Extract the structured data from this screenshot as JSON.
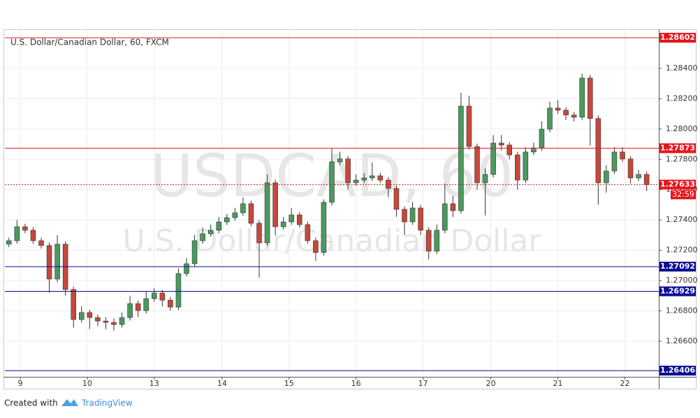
{
  "chart_data": {
    "type": "candlestick",
    "title": "U.S. Dollar/Canadian Dollar, 60, FXCM",
    "watermark": "USDCAD, 60",
    "watermark_subtitle": "U.S. Dollar/Canadian Dollar",
    "footer_prefix": "Created with",
    "footer_brand": "TradingView",
    "up_color": "#4a9a5e",
    "down_color": "#c8473b",
    "x": [
      1,
      2,
      3,
      4,
      5,
      6,
      7,
      8,
      9,
      10,
      11,
      12,
      13,
      14,
      15,
      16,
      17,
      18,
      19,
      20,
      21,
      22,
      23,
      24,
      25,
      26,
      27,
      28,
      29,
      30,
      31,
      32,
      33,
      34,
      35,
      36,
      37,
      38,
      39,
      40,
      41,
      42,
      43,
      44,
      45,
      46,
      47,
      48,
      49,
      50,
      51,
      52,
      53,
      54,
      55,
      56,
      57,
      58,
      59,
      60,
      61,
      62,
      63,
      64,
      65,
      66,
      67,
      68,
      69,
      70,
      71,
      72,
      73,
      74,
      75,
      76,
      77,
      78,
      79,
      80
    ],
    "open": [
      1.2724,
      1.27263,
      1.27355,
      1.27332,
      1.27263,
      1.27231,
      1.2701,
      1.2724,
      1.26941,
      1.26743,
      1.26789,
      1.26756,
      1.26733,
      1.26724,
      1.2671,
      1.26756,
      1.26848,
      1.26802,
      1.26881,
      1.26918,
      1.26871,
      1.26825,
      1.27046,
      1.27111,
      1.27263,
      1.27309,
      1.27332,
      1.27387,
      1.27415,
      1.27447,
      1.27507,
      1.27378,
      1.27249,
      1.27645,
      1.27355,
      1.27387,
      1.27433,
      1.27369,
      1.27263,
      1.27185,
      1.27516,
      1.27783,
      1.27802,
      1.27645,
      1.27663,
      1.27677,
      1.27691,
      1.27663,
      1.27608,
      1.2747,
      1.27387,
      1.27479,
      1.27332,
      1.27194,
      1.27332,
      1.27507,
      1.27461,
      1.28151,
      1.27884,
      1.27645,
      1.277,
      1.27907,
      1.27894,
      1.27829,
      1.27663,
      1.27848,
      1.27875,
      1.27999,
      1.28138,
      1.28124,
      1.28092,
      1.28078,
      1.28336,
      1.28069,
      1.27645,
      1.27723,
      1.27848,
      1.27802,
      1.27677,
      1.277
    ],
    "high": [
      1.27283,
      1.274,
      1.27375,
      1.27352,
      1.27283,
      1.27251,
      1.273,
      1.2726,
      1.26961,
      1.2683,
      1.26809,
      1.26776,
      1.2676,
      1.2675,
      1.2679,
      1.269,
      1.26868,
      1.2693,
      1.2695,
      1.26938,
      1.26891,
      1.2708,
      1.2715,
      1.273,
      1.2735,
      1.2737,
      1.2742,
      1.2744,
      1.2748,
      1.2755,
      1.27527,
      1.27398,
      1.277,
      1.27665,
      1.2742,
      1.2748,
      1.27453,
      1.27389,
      1.27283,
      1.27536,
      1.2787,
      1.2785,
      1.27822,
      1.277,
      1.2771,
      1.2778,
      1.27711,
      1.27683,
      1.27628,
      1.2749,
      1.2752,
      1.27499,
      1.27352,
      1.2737,
      1.2764,
      1.2756,
      1.2824,
      1.2822,
      1.27904,
      1.2774,
      1.2796,
      1.2796,
      1.27914,
      1.27849,
      1.2788,
      1.2791,
      1.2805,
      1.2818,
      1.2819,
      1.28144,
      1.28112,
      1.28365,
      1.28356,
      1.28089,
      1.2776,
      1.2788,
      1.2788,
      1.27822,
      1.2773,
      1.2772
    ],
    "low": [
      1.2722,
      1.27243,
      1.27312,
      1.27243,
      1.27211,
      1.2692,
      1.2699,
      1.269,
      1.2669,
      1.26723,
      1.2668,
      1.267,
      1.2668,
      1.2667,
      1.2669,
      1.26736,
      1.2676,
      1.26782,
      1.26861,
      1.2683,
      1.268,
      1.26805,
      1.27026,
      1.27091,
      1.27243,
      1.27289,
      1.27312,
      1.27367,
      1.27395,
      1.27427,
      1.27358,
      1.2702,
      1.27229,
      1.273,
      1.27335,
      1.27367,
      1.27349,
      1.27243,
      1.2713,
      1.27165,
      1.27496,
      1.27763,
      1.276,
      1.27625,
      1.27643,
      1.27657,
      1.27643,
      1.2755,
      1.2742,
      1.273,
      1.27367,
      1.273,
      1.2714,
      1.27174,
      1.27312,
      1.2742,
      1.27441,
      1.27864,
      1.276,
      1.2743,
      1.2768,
      1.2786,
      1.278,
      1.276,
      1.27643,
      1.27828,
      1.27855,
      1.27979,
      1.281,
      1.2806,
      1.2805,
      1.28058,
      1.2789,
      1.275,
      1.2758,
      1.27703,
      1.27782,
      1.2764,
      1.27657,
      1.2759
    ],
    "close": [
      1.27263,
      1.27355,
      1.27332,
      1.27263,
      1.27231,
      1.2701,
      1.2724,
      1.26941,
      1.26743,
      1.26789,
      1.26756,
      1.26733,
      1.26724,
      1.2671,
      1.26756,
      1.26848,
      1.26802,
      1.26881,
      1.26918,
      1.26871,
      1.26825,
      1.27046,
      1.27111,
      1.27263,
      1.27309,
      1.27332,
      1.27387,
      1.27415,
      1.27447,
      1.27507,
      1.27378,
      1.27249,
      1.27645,
      1.27355,
      1.27387,
      1.27433,
      1.27369,
      1.27263,
      1.27185,
      1.27516,
      1.27783,
      1.27802,
      1.27645,
      1.27663,
      1.27677,
      1.27691,
      1.27663,
      1.27608,
      1.2747,
      1.27387,
      1.27479,
      1.27332,
      1.27194,
      1.27332,
      1.27507,
      1.27461,
      1.28151,
      1.27884,
      1.27645,
      1.277,
      1.27907,
      1.27894,
      1.27829,
      1.27663,
      1.27848,
      1.27875,
      1.27999,
      1.28138,
      1.28124,
      1.28092,
      1.28078,
      1.28336,
      1.28069,
      1.27645,
      1.27723,
      1.27848,
      1.27802,
      1.27677,
      1.277,
      1.27633
    ],
    "xlim": [
      0.5,
      81.5
    ],
    "xticks": [
      {
        "value": 2.4,
        "label": "9"
      },
      {
        "value": 10.7,
        "label": "10"
      },
      {
        "value": 19.0,
        "label": "13"
      },
      {
        "value": 27.4,
        "label": "14"
      },
      {
        "value": 35.7,
        "label": "15"
      },
      {
        "value": 44.0,
        "label": "16"
      },
      {
        "value": 52.3,
        "label": "17"
      },
      {
        "value": 60.7,
        "label": "20"
      },
      {
        "value": 69.0,
        "label": "21"
      },
      {
        "value": 77.3,
        "label": "22"
      }
    ],
    "ylim": [
      1.26365,
      1.28653
    ],
    "yticks": [
      {
        "value": 1.266,
        "label": "1.26600"
      },
      {
        "value": 1.268,
        "label": "1.26800"
      },
      {
        "value": 1.27,
        "label": "1.27000"
      },
      {
        "value": 1.272,
        "label": "1.27200"
      },
      {
        "value": 1.274,
        "label": "1.27400"
      },
      {
        "value": 1.276,
        "label": "1.27600"
      },
      {
        "value": 1.278,
        "label": "1.27800"
      },
      {
        "value": 1.28,
        "label": "1.28000"
      },
      {
        "value": 1.282,
        "label": "1.28200"
      },
      {
        "value": 1.284,
        "label": "1.28400"
      }
    ],
    "grid": true,
    "levels": [
      {
        "value": 1.28602,
        "color": "#e8141c"
      },
      {
        "value": 1.27873,
        "color": "#e8141c"
      },
      {
        "value": 1.27092,
        "color": "#0c0c96"
      },
      {
        "value": 1.26929,
        "color": "#0c0c96"
      },
      {
        "value": 1.26406,
        "color": "#0c0c96"
      }
    ],
    "current_price": 1.27633,
    "current_color": "#e8141c",
    "countdown": "32:59"
  }
}
